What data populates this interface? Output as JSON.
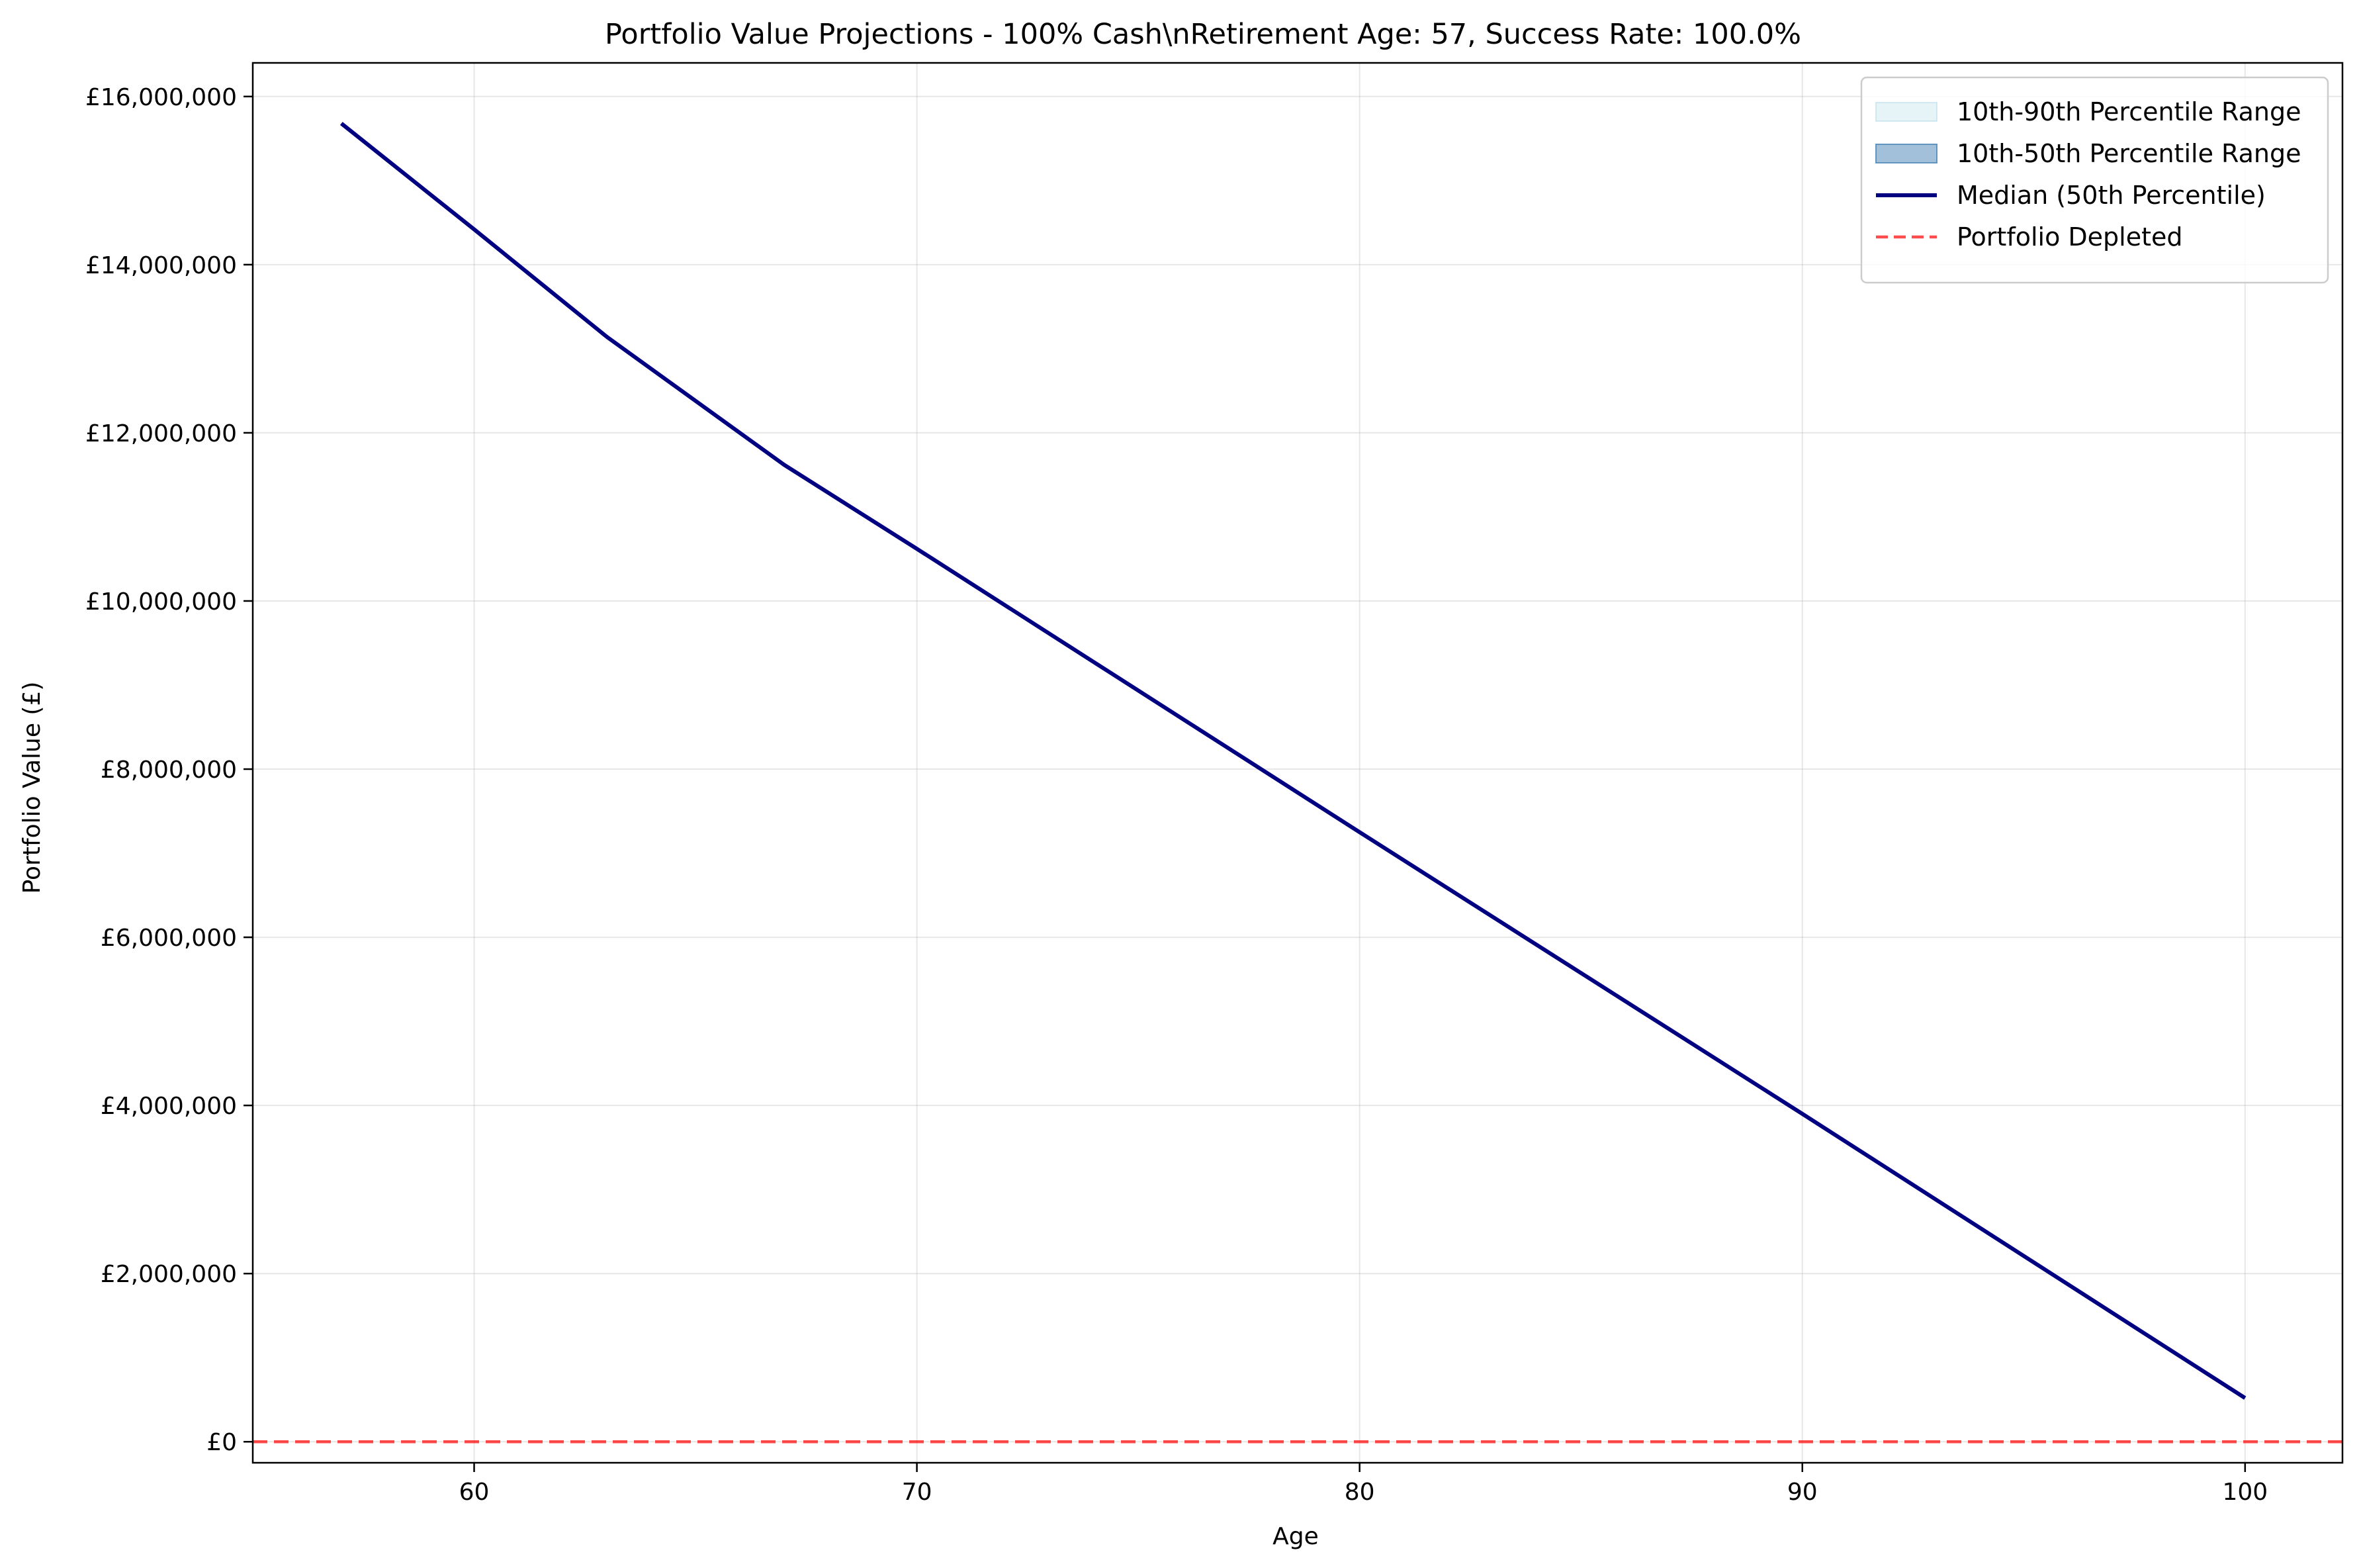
{
  "chart_data": {
    "type": "line",
    "title": "Portfolio Value Projections - 100% Cash\\nRetirement Age: 57, Success Rate: 100.0%",
    "xlabel": "Age",
    "ylabel": "Portfolio Value (£)",
    "xlim": [
      55,
      102.2
    ],
    "ylim": [
      -250000,
      16400000
    ],
    "x_ticks": [
      60,
      70,
      80,
      90,
      100
    ],
    "x_tick_labels": [
      "60",
      "70",
      "80",
      "90",
      "100"
    ],
    "y_ticks": [
      0,
      2000000,
      4000000,
      6000000,
      8000000,
      10000000,
      12000000,
      14000000,
      16000000
    ],
    "y_tick_labels": [
      "£0",
      "£2,000,000",
      "£4,000,000",
      "£6,000,000",
      "£8,000,000",
      "£10,000,000",
      "£12,000,000",
      "£14,000,000",
      "£16,000,000"
    ],
    "grid": true,
    "legend_position": "top-right",
    "legend": [
      {
        "label": "10th-90th Percentile Range",
        "kind": "band",
        "color": "#add8e6"
      },
      {
        "label": "10th-50th Percentile Range",
        "kind": "band",
        "color": "#4682b4"
      },
      {
        "label": "Median (50th Percentile)",
        "kind": "line",
        "color": "#000080"
      },
      {
        "label": "Portfolio Depleted",
        "kind": "dashed",
        "color": "#ff0000"
      }
    ],
    "series": [
      {
        "name": "Median (50th Percentile)",
        "color": "#000080",
        "x": [
          57,
          60,
          63,
          67,
          70,
          80,
          90,
          100
        ],
        "y": [
          15680000,
          14420000,
          13140000,
          11620000,
          10620000,
          7250000,
          3900000,
          520000
        ]
      }
    ],
    "reference_lines": [
      {
        "name": "Portfolio Depleted",
        "y": 0,
        "color": "#ff0000",
        "style": "dashed"
      }
    ]
  }
}
